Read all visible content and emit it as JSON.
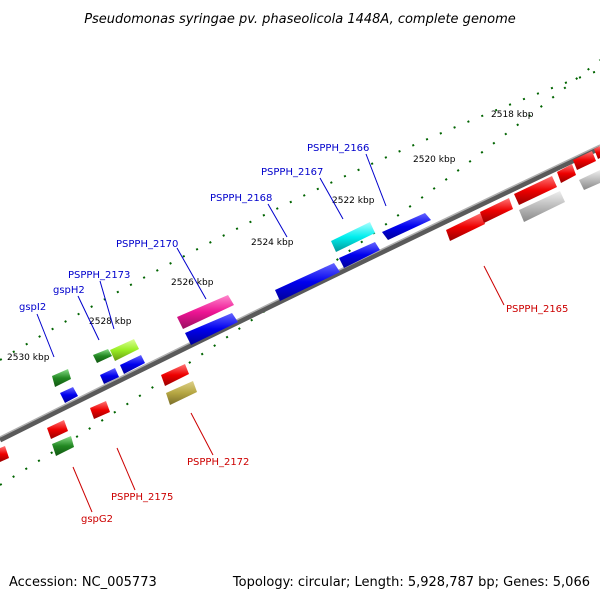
{
  "title": "Pseudomonas syringae pv. phaseolicola 1448A, complete genome",
  "footer": {
    "accession": "Accession: NC_005773",
    "summary": "Topology: circular; Length: 5,928,787 bp; Genes: 5,066"
  },
  "ruler_labels": [
    "2518 kbp",
    "2520 kbp",
    "2522 kbp",
    "2524 kbp",
    "2526 kbp",
    "2528 kbp",
    "2530 kbp"
  ],
  "gene_labels_forward": [
    "PSPPH_2166",
    "PSPPH_2167",
    "PSPPH_2168",
    "PSPPH_2170",
    "PSPPH_2173",
    "gspH2",
    "gspI2"
  ],
  "gene_labels_reverse": [
    "PSPPH_2165",
    "PSPPH_2172",
    "PSPPH_2175",
    "gspG2"
  ],
  "colors": {
    "forward_label": "#0000cc",
    "reverse_label": "#cc0000",
    "backbone": "#808080",
    "blue_gene": "#0000ee",
    "red_gene": "#ee0000",
    "cyan_gene": "#00eeee",
    "magenta_gene": "#ee1493",
    "green_gene": "#22aa22",
    "lime_gene": "#99ee22",
    "olive_gene": "#b5a642",
    "grey_gene": "#b0b0b0",
    "ruler_tick": "#006400"
  }
}
